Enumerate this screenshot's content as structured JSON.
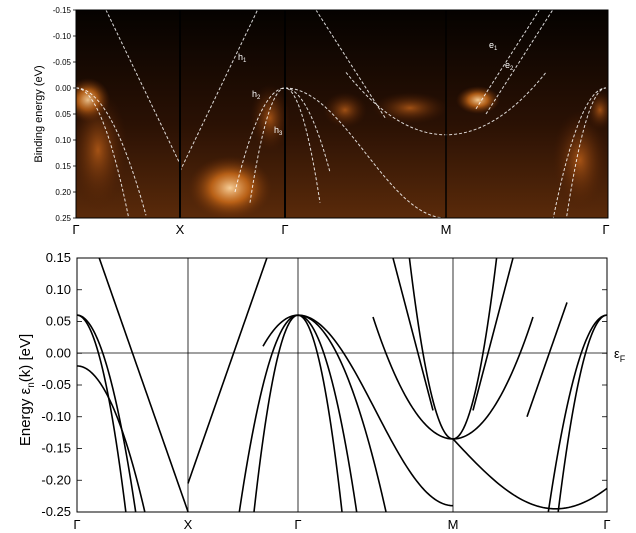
{
  "chart_data": [
    {
      "type": "heatmap",
      "description_kind": "ARPES intensity map",
      "ylabel": "Binding energy (eV)",
      "ylim": [
        -0.15,
        0.25
      ],
      "y_inverted": true,
      "yticks": [
        "-0.15",
        "-0.10",
        "-0.05",
        "0.00",
        "0.05",
        "0.10",
        "0.15",
        "0.20",
        "0.25"
      ],
      "kpoints": [
        "Γ",
        "X",
        "Γ",
        "M",
        "Γ"
      ],
      "band_labels": [
        "h",
        "h",
        "h",
        "e",
        "e"
      ],
      "band_label_subs": [
        "1",
        "2",
        "3",
        "1",
        "2"
      ],
      "colors": {
        "background": "#0b0502",
        "hot": "#ff9a3a",
        "band_line": "#ffffff"
      }
    },
    {
      "type": "line",
      "xlabel": "",
      "ylabel_main": "Energy  ε",
      "ylabel_sub": "n",
      "ylabel_tail": "(k) [eV]",
      "ylim": [
        -0.25,
        0.15
      ],
      "yticks": [
        "0.15",
        "0.10",
        "0.05",
        "0.00",
        "-0.05",
        "-0.10",
        "-0.15",
        "-0.20",
        "-0.25"
      ],
      "kpoints": [
        "Γ",
        "X",
        "Γ",
        "M",
        "Γ"
      ],
      "fermi_label": "ε",
      "fermi_label_sub": "F",
      "fermi_level": 0.0,
      "colors": {
        "line": "#000000"
      }
    }
  ]
}
